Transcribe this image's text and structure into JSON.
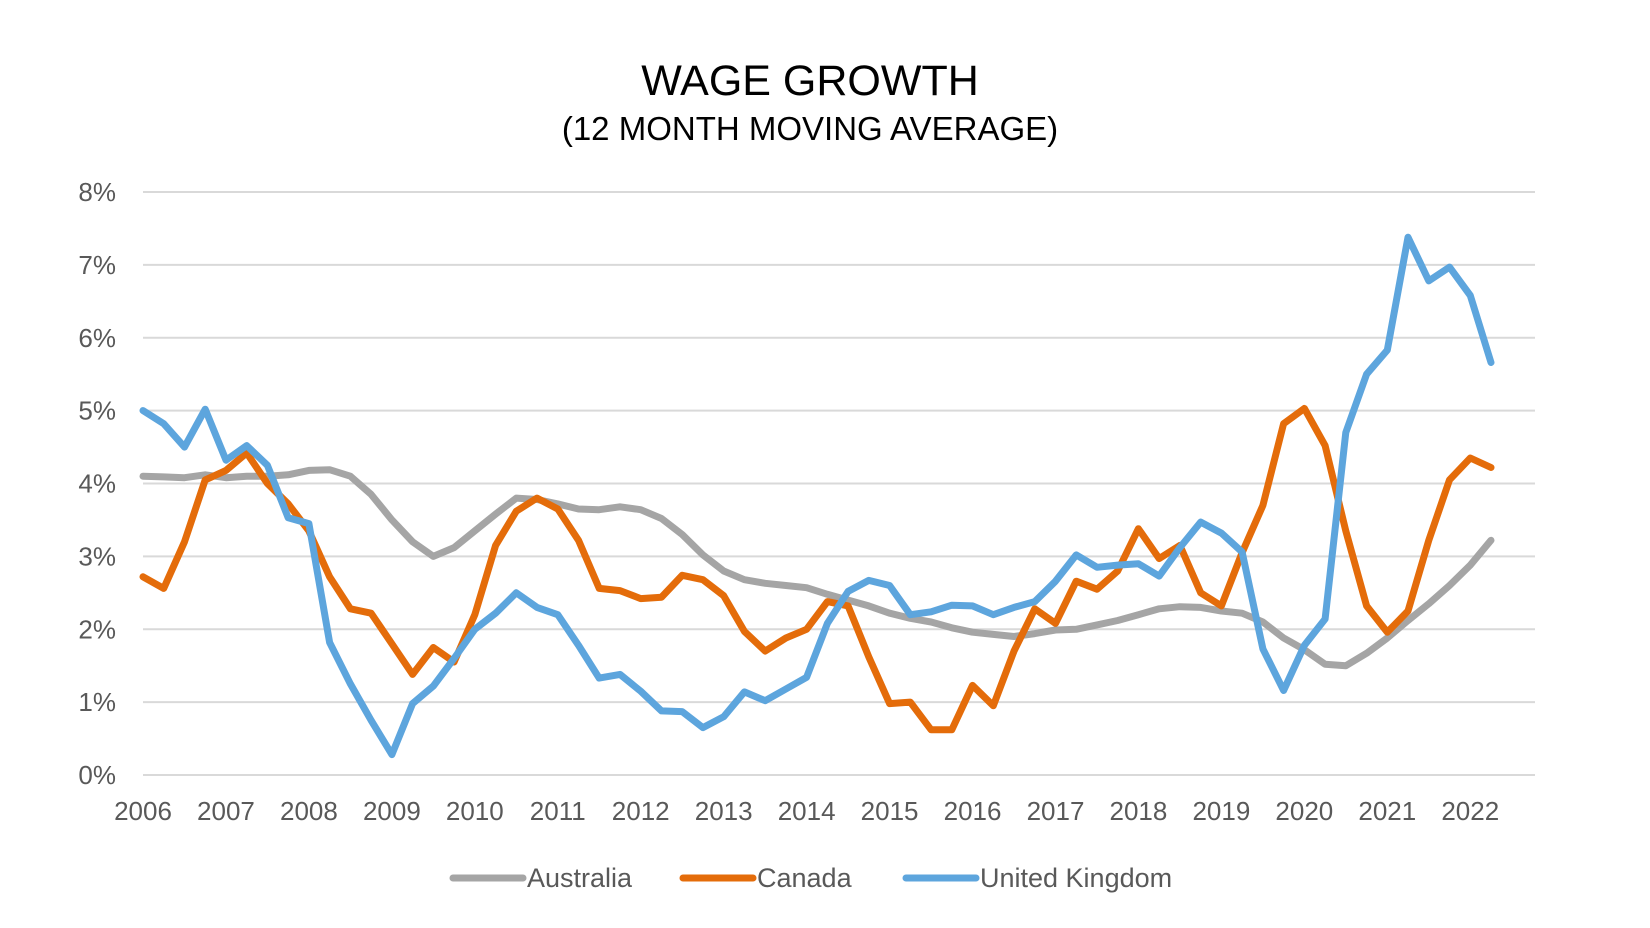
{
  "chart_data": {
    "type": "line",
    "title": "WAGE GROWTH",
    "subtitle": "(12 MONTH MOVING AVERAGE)",
    "xlabel": "",
    "ylabel": "",
    "xlim": [
      2006,
      2023
    ],
    "ylim": [
      0,
      8
    ],
    "x_ticks": [
      2006,
      2007,
      2008,
      2009,
      2010,
      2011,
      2012,
      2013,
      2014,
      2015,
      2016,
      2017,
      2018,
      2019,
      2020,
      2021,
      2022
    ],
    "x_tick_labels": [
      "2006",
      "2007",
      "2008",
      "2009",
      "2010",
      "2011",
      "2012",
      "2013",
      "2014",
      "2015",
      "2016",
      "2017",
      "2018",
      "2019",
      "2020",
      "2021",
      "2022"
    ],
    "y_ticks": [
      0,
      1,
      2,
      3,
      4,
      5,
      6,
      7,
      8
    ],
    "y_tick_labels": [
      "0%",
      "1%",
      "2%",
      "3%",
      "4%",
      "5%",
      "6%",
      "7%",
      "8%"
    ],
    "grid": "horizontal",
    "legend_position": "bottom",
    "series": [
      {
        "name": "Australia",
        "color": "#A5A5A5",
        "points": [
          [
            2006.0,
            4.1
          ],
          [
            2006.25,
            4.09
          ],
          [
            2006.5,
            4.08
          ],
          [
            2006.75,
            4.12
          ],
          [
            2007.0,
            4.08
          ],
          [
            2007.25,
            4.1
          ],
          [
            2007.5,
            4.1
          ],
          [
            2007.75,
            4.12
          ],
          [
            2008.0,
            4.18
          ],
          [
            2008.25,
            4.19
          ],
          [
            2008.5,
            4.1
          ],
          [
            2008.75,
            3.85
          ],
          [
            2009.0,
            3.5
          ],
          [
            2009.25,
            3.2
          ],
          [
            2009.5,
            3.0
          ],
          [
            2009.75,
            3.12
          ],
          [
            2010.0,
            3.35
          ],
          [
            2010.25,
            3.58
          ],
          [
            2010.5,
            3.8
          ],
          [
            2010.75,
            3.78
          ],
          [
            2011.0,
            3.72
          ],
          [
            2011.25,
            3.65
          ],
          [
            2011.5,
            3.64
          ],
          [
            2011.75,
            3.68
          ],
          [
            2012.0,
            3.64
          ],
          [
            2012.25,
            3.52
          ],
          [
            2012.5,
            3.3
          ],
          [
            2012.75,
            3.02
          ],
          [
            2013.0,
            2.8
          ],
          [
            2013.25,
            2.68
          ],
          [
            2013.5,
            2.63
          ],
          [
            2013.75,
            2.6
          ],
          [
            2014.0,
            2.57
          ],
          [
            2014.25,
            2.48
          ],
          [
            2014.5,
            2.4
          ],
          [
            2014.75,
            2.32
          ],
          [
            2015.0,
            2.22
          ],
          [
            2015.25,
            2.15
          ],
          [
            2015.5,
            2.1
          ],
          [
            2015.75,
            2.02
          ],
          [
            2016.0,
            1.96
          ],
          [
            2016.25,
            1.93
          ],
          [
            2016.5,
            1.9
          ],
          [
            2016.75,
            1.94
          ],
          [
            2017.0,
            1.99
          ],
          [
            2017.25,
            2.0
          ],
          [
            2017.5,
            2.06
          ],
          [
            2017.75,
            2.12
          ],
          [
            2018.0,
            2.2
          ],
          [
            2018.25,
            2.28
          ],
          [
            2018.5,
            2.31
          ],
          [
            2018.75,
            2.3
          ],
          [
            2019.0,
            2.25
          ],
          [
            2019.25,
            2.22
          ],
          [
            2019.5,
            2.1
          ],
          [
            2019.75,
            1.88
          ],
          [
            2020.0,
            1.72
          ],
          [
            2020.25,
            1.52
          ],
          [
            2020.5,
            1.5
          ],
          [
            2020.75,
            1.67
          ],
          [
            2021.0,
            1.88
          ],
          [
            2021.25,
            2.12
          ],
          [
            2021.5,
            2.35
          ],
          [
            2021.75,
            2.6
          ],
          [
            2022.0,
            2.88
          ],
          [
            2022.25,
            3.22
          ]
        ]
      },
      {
        "name": "Canada",
        "color": "#E46C0A",
        "points": [
          [
            2006.0,
            2.72
          ],
          [
            2006.25,
            2.56
          ],
          [
            2006.5,
            3.2
          ],
          [
            2006.75,
            4.05
          ],
          [
            2007.0,
            4.18
          ],
          [
            2007.25,
            4.42
          ],
          [
            2007.5,
            4.0
          ],
          [
            2007.75,
            3.72
          ],
          [
            2008.0,
            3.35
          ],
          [
            2008.25,
            2.72
          ],
          [
            2008.5,
            2.28
          ],
          [
            2008.75,
            2.22
          ],
          [
            2009.0,
            1.8
          ],
          [
            2009.25,
            1.38
          ],
          [
            2009.5,
            1.75
          ],
          [
            2009.75,
            1.55
          ],
          [
            2010.0,
            2.2
          ],
          [
            2010.25,
            3.15
          ],
          [
            2010.5,
            3.62
          ],
          [
            2010.75,
            3.8
          ],
          [
            2011.0,
            3.65
          ],
          [
            2011.25,
            3.22
          ],
          [
            2011.5,
            2.56
          ],
          [
            2011.75,
            2.53
          ],
          [
            2012.0,
            2.42
          ],
          [
            2012.25,
            2.44
          ],
          [
            2012.5,
            2.74
          ],
          [
            2012.75,
            2.68
          ],
          [
            2013.0,
            2.46
          ],
          [
            2013.25,
            1.97
          ],
          [
            2013.5,
            1.7
          ],
          [
            2013.75,
            1.88
          ],
          [
            2014.0,
            2.0
          ],
          [
            2014.25,
            2.38
          ],
          [
            2014.5,
            2.32
          ],
          [
            2014.75,
            1.62
          ],
          [
            2015.0,
            0.98
          ],
          [
            2015.25,
            1.0
          ],
          [
            2015.5,
            0.62
          ],
          [
            2015.75,
            0.62
          ],
          [
            2016.0,
            1.23
          ],
          [
            2016.25,
            0.95
          ],
          [
            2016.5,
            1.7
          ],
          [
            2016.75,
            2.28
          ],
          [
            2017.0,
            2.08
          ],
          [
            2017.25,
            2.66
          ],
          [
            2017.5,
            2.55
          ],
          [
            2017.75,
            2.8
          ],
          [
            2018.0,
            3.38
          ],
          [
            2018.25,
            2.97
          ],
          [
            2018.5,
            3.15
          ],
          [
            2018.75,
            2.5
          ],
          [
            2019.0,
            2.32
          ],
          [
            2019.25,
            3.05
          ],
          [
            2019.5,
            3.7
          ],
          [
            2019.75,
            4.82
          ],
          [
            2020.0,
            5.03
          ],
          [
            2020.25,
            4.52
          ],
          [
            2020.5,
            3.35
          ],
          [
            2020.75,
            2.32
          ],
          [
            2021.0,
            1.96
          ],
          [
            2021.25,
            2.25
          ],
          [
            2021.5,
            3.22
          ],
          [
            2021.75,
            4.05
          ],
          [
            2022.0,
            4.35
          ],
          [
            2022.25,
            4.22
          ]
        ]
      },
      {
        "name": "United Kingdom",
        "color": "#5DA5DD",
        "points": [
          [
            2006.0,
            5.0
          ],
          [
            2006.25,
            4.82
          ],
          [
            2006.5,
            4.5
          ],
          [
            2006.75,
            5.02
          ],
          [
            2007.0,
            4.32
          ],
          [
            2007.25,
            4.52
          ],
          [
            2007.5,
            4.25
          ],
          [
            2007.75,
            3.53
          ],
          [
            2008.0,
            3.45
          ],
          [
            2008.25,
            1.82
          ],
          [
            2008.5,
            1.25
          ],
          [
            2008.75,
            0.75
          ],
          [
            2009.0,
            0.28
          ],
          [
            2009.25,
            0.98
          ],
          [
            2009.5,
            1.22
          ],
          [
            2009.75,
            1.6
          ],
          [
            2010.0,
            2.0
          ],
          [
            2010.25,
            2.22
          ],
          [
            2010.5,
            2.5
          ],
          [
            2010.75,
            2.3
          ],
          [
            2011.0,
            2.2
          ],
          [
            2011.25,
            1.78
          ],
          [
            2011.5,
            1.33
          ],
          [
            2011.75,
            1.38
          ],
          [
            2012.0,
            1.15
          ],
          [
            2012.25,
            0.88
          ],
          [
            2012.5,
            0.87
          ],
          [
            2012.75,
            0.65
          ],
          [
            2013.0,
            0.8
          ],
          [
            2013.25,
            1.14
          ],
          [
            2013.5,
            1.02
          ],
          [
            2013.75,
            1.18
          ],
          [
            2014.0,
            1.34
          ],
          [
            2014.25,
            2.08
          ],
          [
            2014.5,
            2.52
          ],
          [
            2014.75,
            2.67
          ],
          [
            2015.0,
            2.6
          ],
          [
            2015.25,
            2.2
          ],
          [
            2015.5,
            2.24
          ],
          [
            2015.75,
            2.33
          ],
          [
            2016.0,
            2.32
          ],
          [
            2016.25,
            2.2
          ],
          [
            2016.5,
            2.3
          ],
          [
            2016.75,
            2.38
          ],
          [
            2017.0,
            2.66
          ],
          [
            2017.25,
            3.02
          ],
          [
            2017.5,
            2.85
          ],
          [
            2017.75,
            2.88
          ],
          [
            2018.0,
            2.9
          ],
          [
            2018.25,
            2.73
          ],
          [
            2018.5,
            3.12
          ],
          [
            2018.75,
            3.47
          ],
          [
            2019.0,
            3.32
          ],
          [
            2019.25,
            3.06
          ],
          [
            2019.5,
            1.73
          ],
          [
            2019.75,
            1.16
          ],
          [
            2020.0,
            1.78
          ],
          [
            2020.25,
            2.14
          ],
          [
            2020.5,
            4.7
          ],
          [
            2020.75,
            5.5
          ],
          [
            2021.0,
            5.83
          ],
          [
            2021.25,
            7.38
          ],
          [
            2021.5,
            6.78
          ],
          [
            2021.75,
            6.97
          ],
          [
            2022.0,
            6.58
          ],
          [
            2022.25,
            5.66
          ]
        ]
      }
    ]
  }
}
